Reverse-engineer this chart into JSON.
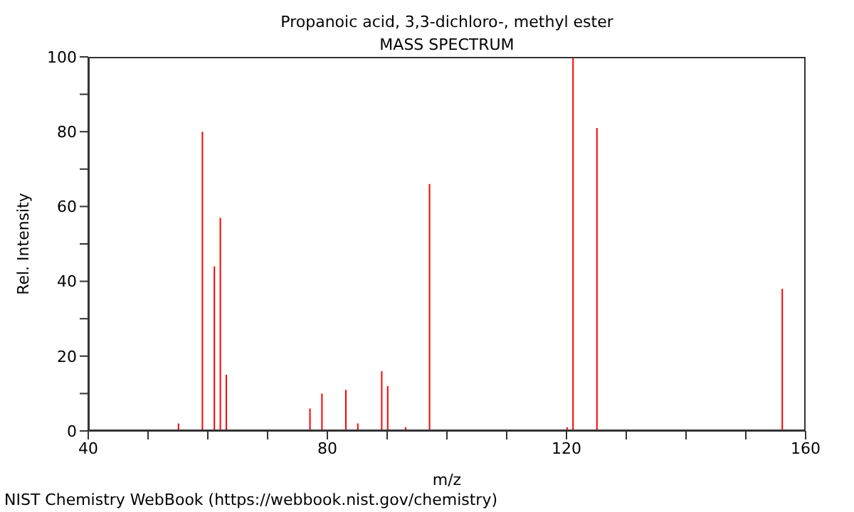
{
  "chart_data": {
    "type": "bar",
    "title": "Propanoic acid, 3,3-dichloro-, methyl ester",
    "subtitle": "MASS SPECTRUM",
    "xlabel": "m/z",
    "ylabel": "Rel. Intensity",
    "annotations": [
      "NIST Chemistry WebBook (https://webbook.nist.gov/chemistry)"
    ],
    "x": [
      55,
      59,
      61,
      62,
      63,
      77,
      79,
      83,
      85,
      89,
      90,
      93,
      97,
      120,
      121,
      125,
      156
    ],
    "values": [
      2,
      80,
      44,
      57,
      15,
      6,
      10,
      11,
      2,
      16,
      12,
      1,
      66,
      1,
      100,
      81,
      38
    ],
    "color": "#ff0000",
    "xlim": [
      40,
      160
    ],
    "xticks": [
      40,
      {
        "value": 50,
        "label": null
      },
      {
        "value": 60,
        "label": null
      },
      {
        "value": 70,
        "label": null
      },
      80,
      {
        "value": 90,
        "label": null
      },
      {
        "value": 100,
        "label": null
      },
      {
        "value": 110,
        "label": null
      },
      120,
      {
        "value": 130,
        "label": null
      },
      {
        "value": 140,
        "label": null
      },
      {
        "value": 150,
        "label": null
      },
      160
    ],
    "ylim": [
      0,
      100
    ],
    "yticks": [
      0,
      {
        "value": 10,
        "label": null
      },
      20,
      {
        "value": 30,
        "label": null
      },
      40,
      {
        "value": 50,
        "label": null
      },
      60,
      {
        "value": 70,
        "label": null
      },
      80,
      {
        "value": 90,
        "label": null
      },
      100
    ],
    "grid": false,
    "legend": false
  }
}
